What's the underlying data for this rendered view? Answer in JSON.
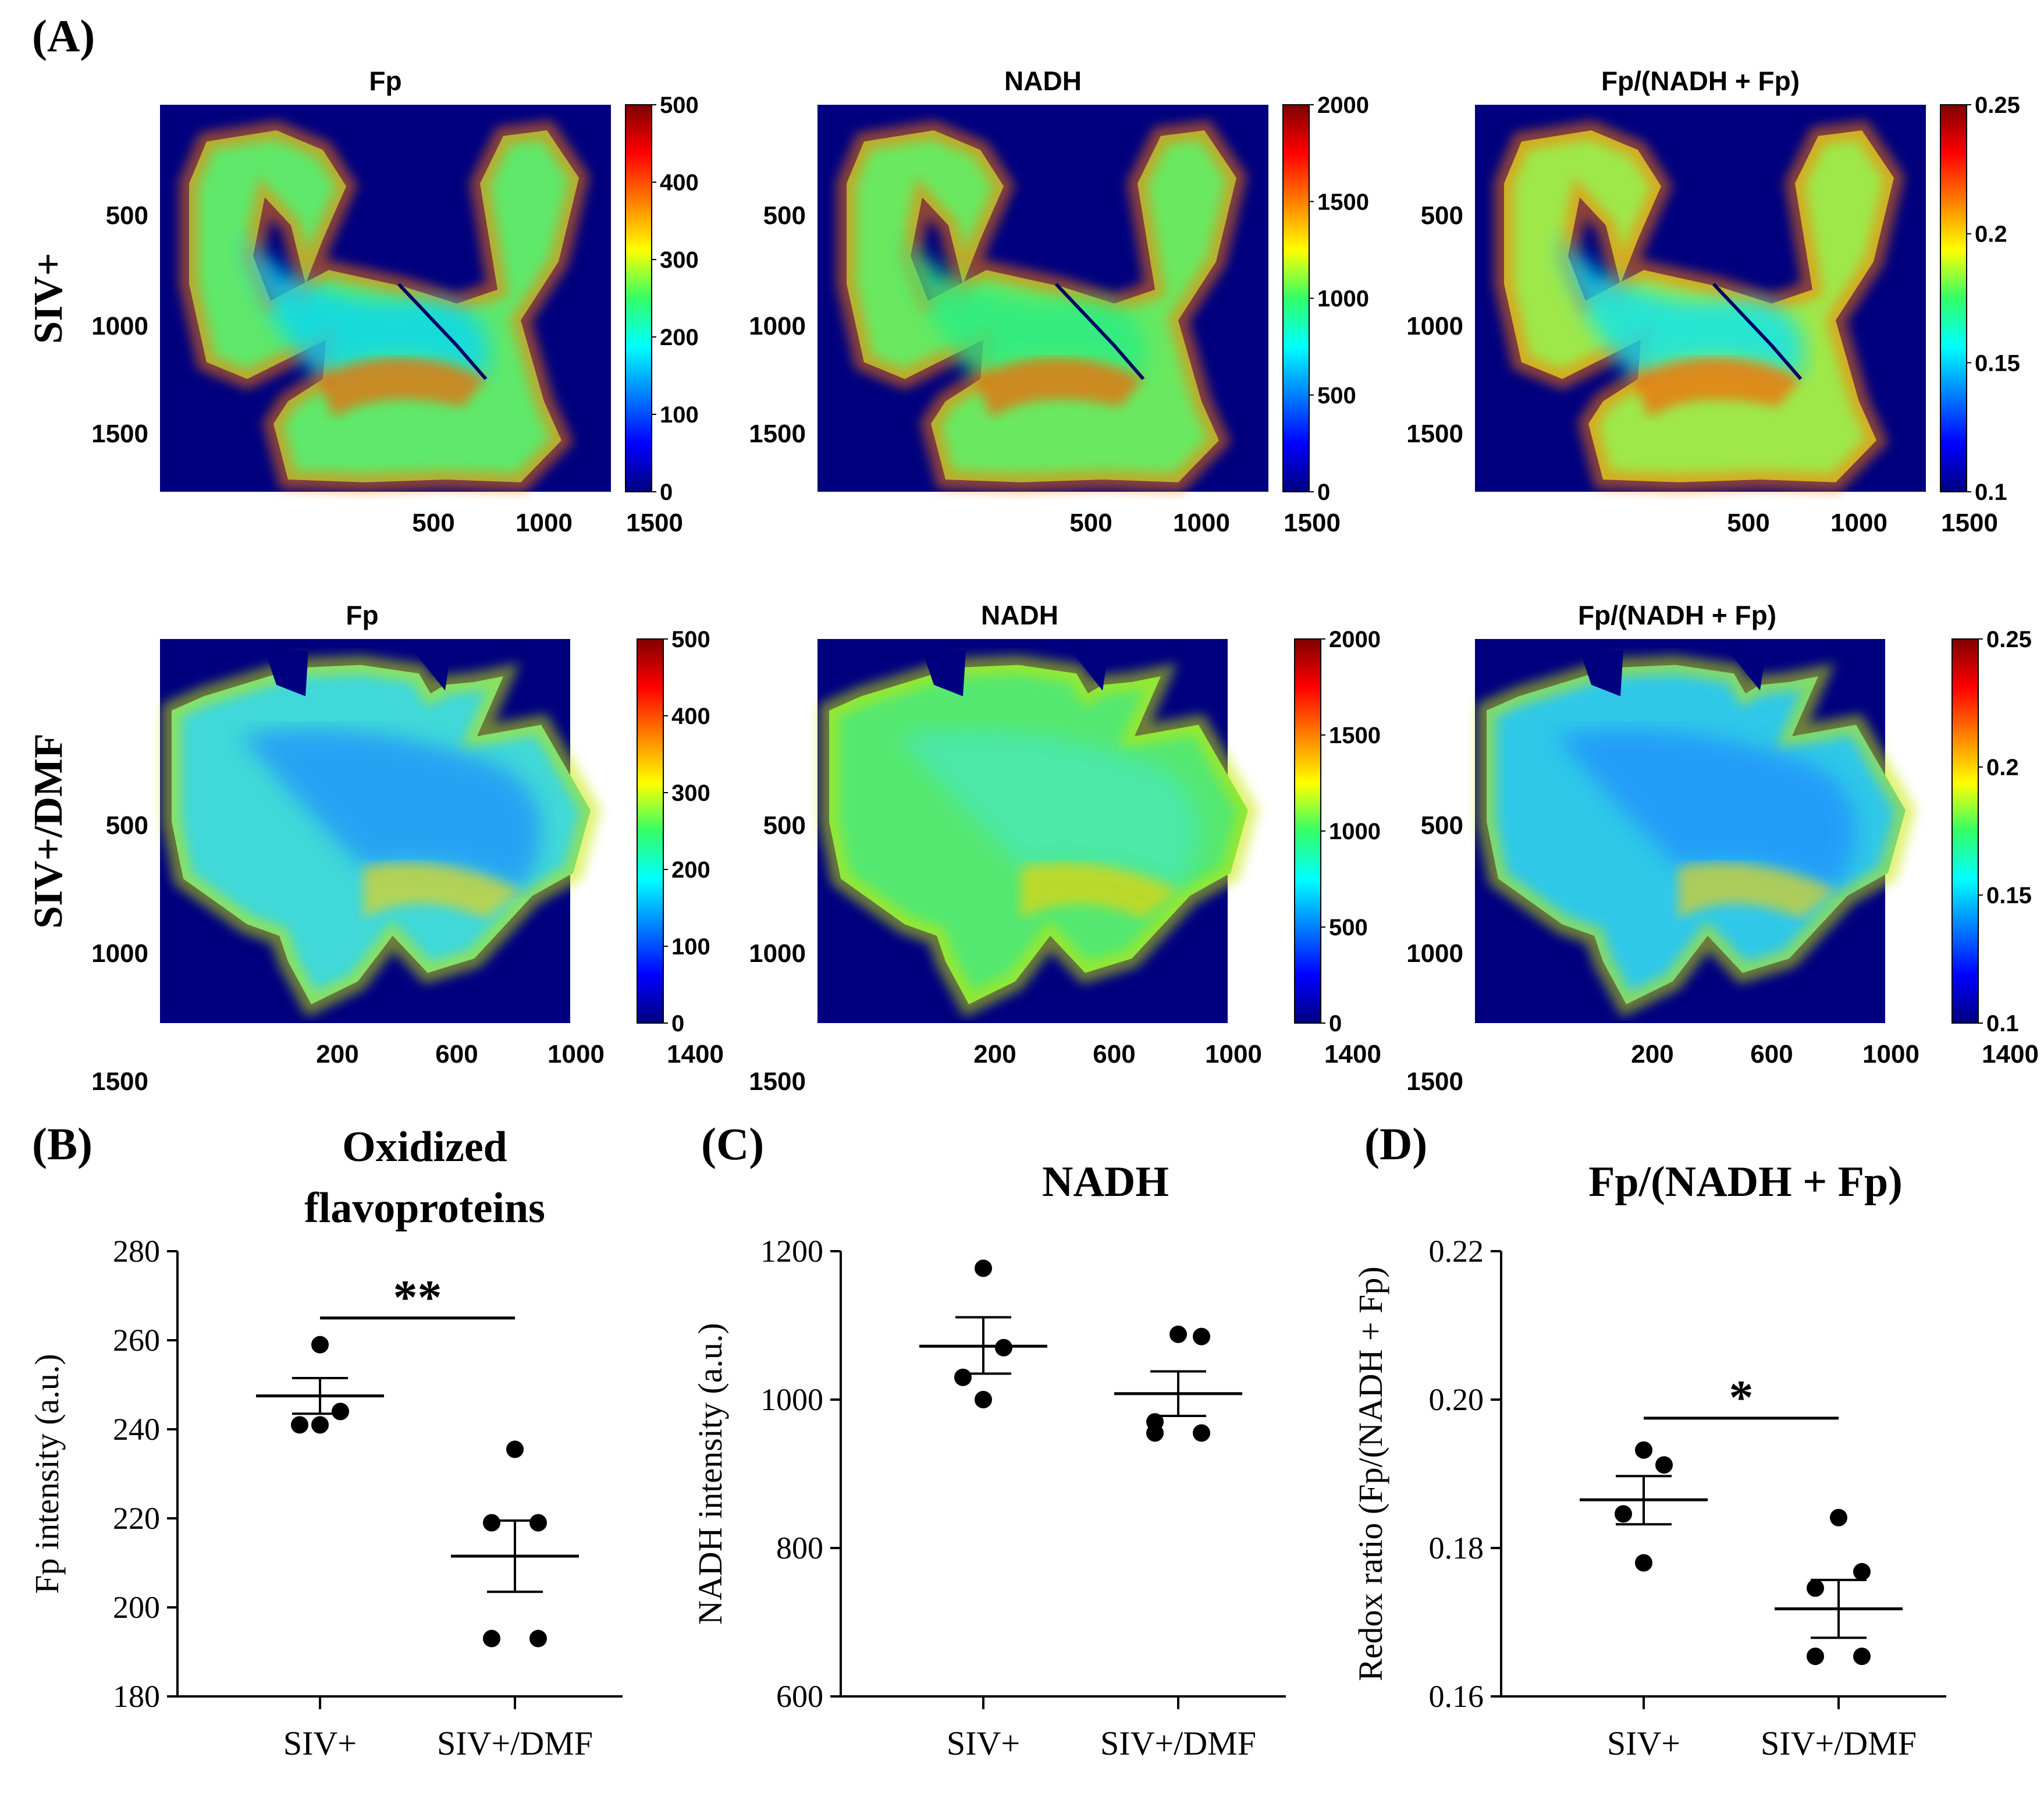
{
  "colors": {
    "axis": "#000000",
    "map_background": "#00007f"
  },
  "panel_A": {
    "label": "(A)",
    "rows": [
      {
        "row_label": "SIV+",
        "maps": [
          {
            "title": "Fp",
            "colorbar_ticks": [
              "0",
              "100",
              "200",
              "300",
              "400",
              "500"
            ],
            "x_ticks": [
              "500",
              "1000",
              "1500"
            ],
            "y_ticks": [
              "500",
              "1000",
              "1500"
            ]
          },
          {
            "title": "NADH",
            "colorbar_ticks": [
              "0",
              "500",
              "1000",
              "1500",
              "2000"
            ],
            "x_ticks": [
              "500",
              "1000",
              "1500"
            ],
            "y_ticks": [
              "500",
              "1000",
              "1500"
            ]
          },
          {
            "title": "Fp/(NADH + Fp)",
            "colorbar_ticks": [
              "0.1",
              "0.15",
              "0.2",
              "0.25"
            ],
            "x_ticks": [
              "500",
              "1000",
              "1500"
            ],
            "y_ticks": [
              "500",
              "1000",
              "1500"
            ]
          }
        ]
      },
      {
        "row_label": "SIV+/DMF",
        "maps": [
          {
            "title": "Fp",
            "colorbar_ticks": [
              "0",
              "100",
              "200",
              "300",
              "400",
              "500"
            ],
            "x_ticks": [
              "200",
              "600",
              "1000",
              "1400"
            ],
            "y_ticks": [
              "500",
              "1000",
              "1500"
            ]
          },
          {
            "title": "NADH",
            "colorbar_ticks": [
              "0",
              "500",
              "1000",
              "1500",
              "2000"
            ],
            "x_ticks": [
              "200",
              "600",
              "1000",
              "1400"
            ],
            "y_ticks": [
              "500",
              "1000",
              "1500"
            ]
          },
          {
            "title": "Fp/(NADH + Fp)",
            "colorbar_ticks": [
              "0.1",
              "0.15",
              "0.2",
              "0.25"
            ],
            "x_ticks": [
              "200",
              "600",
              "1000",
              "1400"
            ],
            "y_ticks": [
              "500",
              "1000",
              "1500"
            ]
          }
        ]
      }
    ]
  },
  "chart_data": [
    {
      "type": "scatter",
      "panel_label": "(B)",
      "title_lines": [
        "Oxidized",
        "flavoproteins"
      ],
      "ylabel": "Fp intensity (a.u.)",
      "ylim": [
        180,
        280
      ],
      "yticks": [
        180,
        200,
        220,
        240,
        260,
        280
      ],
      "categories": [
        "SIV+",
        "SIV+/DMF"
      ],
      "points": [
        [
          259,
          244,
          241,
          241
        ],
        [
          235.5,
          219,
          219,
          193,
          193
        ]
      ],
      "mean": [
        247.5,
        211.5
      ],
      "sem_low": [
        243.5,
        203.5
      ],
      "sem_high": [
        251.5,
        219.5
      ],
      "significance": "**"
    },
    {
      "type": "scatter",
      "panel_label": "(C)",
      "title_lines": [
        "NADH"
      ],
      "ylabel": "NADH intensity (a.u.)",
      "ylim": [
        600,
        1200
      ],
      "yticks": [
        600,
        800,
        1000,
        1200
      ],
      "categories": [
        "SIV+",
        "SIV+/DMF"
      ],
      "points": [
        [
          1177,
          1070,
          1030,
          1000
        ],
        [
          1088,
          1085,
          970,
          955,
          955
        ]
      ],
      "mean": [
        1072,
        1008
      ],
      "sem_low": [
        1035,
        978
      ],
      "sem_high": [
        1111,
        1038
      ],
      "significance": ""
    },
    {
      "type": "scatter",
      "panel_label": "(D)",
      "title_lines": [
        "Fp/(NADH + Fp)"
      ],
      "ylabel": "Redox ratio (Fp/(NADH + Fp)",
      "ylim": [
        0.16,
        0.22
      ],
      "yticks": [
        0.16,
        0.18,
        0.2,
        0.22
      ],
      "ytick_labels": [
        "0.16",
        "0.18",
        "0.20",
        "0.22"
      ],
      "categories": [
        "SIV+",
        "SIV+/DMF"
      ],
      "points": [
        [
          0.1932,
          0.1912,
          0.1846,
          0.178
        ],
        [
          0.1841,
          0.1768,
          0.1746,
          0.1654,
          0.1654
        ]
      ],
      "mean": [
        0.1865,
        0.1718
      ],
      "sem_low": [
        0.1832,
        0.1679
      ],
      "sem_high": [
        0.1897,
        0.1757
      ],
      "significance": "*"
    }
  ]
}
